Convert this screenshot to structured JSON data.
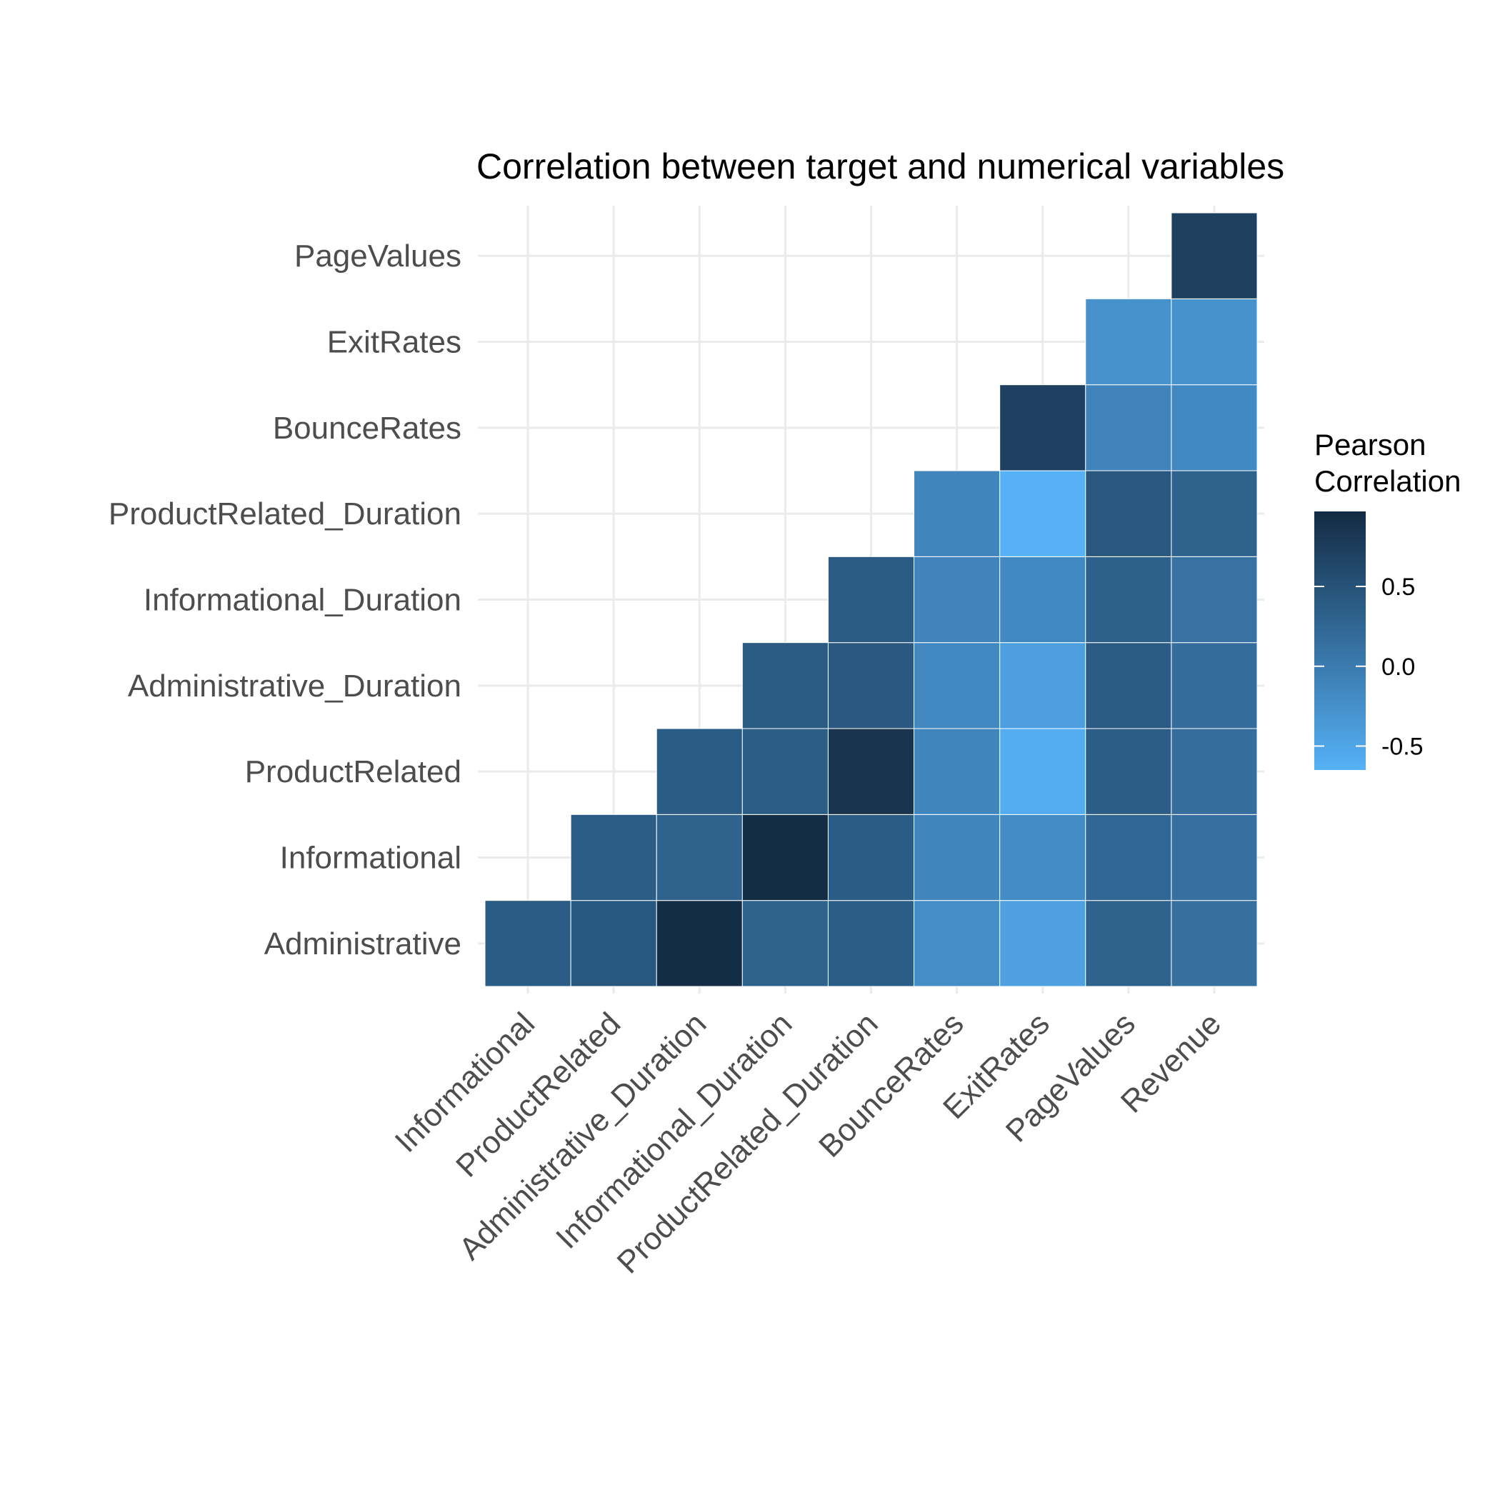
{
  "chart_data": {
    "type": "heatmap",
    "title": "Correlation between target and numerical variables",
    "xlabel": "",
    "ylabel": "",
    "x_categories": [
      "Informational",
      "ProductRelated",
      "Administrative_Duration",
      "Informational_Duration",
      "ProductRelated_Duration",
      "BounceRates",
      "ExitRates",
      "PageValues",
      "Revenue"
    ],
    "y_categories": [
      "Administrative",
      "Informational",
      "ProductRelated",
      "Administrative_Duration",
      "Informational_Duration",
      "ProductRelated_Duration",
      "BounceRates",
      "ExitRates",
      "PageValues"
    ],
    "cells": [
      {
        "x": "Informational",
        "y": "Administrative",
        "value": 0.38
      },
      {
        "x": "ProductRelated",
        "y": "Administrative",
        "value": 0.43
      },
      {
        "x": "Administrative_Duration",
        "y": "Administrative",
        "value": 0.94
      },
      {
        "x": "Informational_Duration",
        "y": "Administrative",
        "value": 0.3
      },
      {
        "x": "ProductRelated_Duration",
        "y": "Administrative",
        "value": 0.37
      },
      {
        "x": "BounceRates",
        "y": "Administrative",
        "value": -0.22
      },
      {
        "x": "ExitRates",
        "y": "Administrative",
        "value": -0.45
      },
      {
        "x": "PageValues",
        "y": "Administrative",
        "value": 0.3
      },
      {
        "x": "Revenue",
        "y": "Administrative",
        "value": 0.14
      },
      {
        "x": "ProductRelated",
        "y": "Informational",
        "value": 0.37
      },
      {
        "x": "Administrative_Duration",
        "y": "Informational",
        "value": 0.3
      },
      {
        "x": "Informational_Duration",
        "y": "Informational",
        "value": 0.95
      },
      {
        "x": "ProductRelated_Duration",
        "y": "Informational",
        "value": 0.38
      },
      {
        "x": "BounceRates",
        "y": "Informational",
        "value": -0.12
      },
      {
        "x": "ExitRates",
        "y": "Informational",
        "value": -0.2
      },
      {
        "x": "PageValues",
        "y": "Informational",
        "value": 0.24
      },
      {
        "x": "Revenue",
        "y": "Informational",
        "value": 0.13
      },
      {
        "x": "Administrative_Duration",
        "y": "ProductRelated",
        "value": 0.38
      },
      {
        "x": "Informational_Duration",
        "y": "ProductRelated",
        "value": 0.36
      },
      {
        "x": "ProductRelated_Duration",
        "y": "ProductRelated",
        "value": 0.86
      },
      {
        "x": "BounceRates",
        "y": "ProductRelated",
        "value": -0.12
      },
      {
        "x": "ExitRates",
        "y": "ProductRelated",
        "value": -0.6
      },
      {
        "x": "PageValues",
        "y": "ProductRelated",
        "value": 0.36
      },
      {
        "x": "Revenue",
        "y": "ProductRelated",
        "value": 0.16
      },
      {
        "x": "Informational_Duration",
        "y": "Administrative_Duration",
        "value": 0.39
      },
      {
        "x": "ProductRelated_Duration",
        "y": "Administrative_Duration",
        "value": 0.42
      },
      {
        "x": "BounceRates",
        "y": "Administrative_Duration",
        "value": -0.16
      },
      {
        "x": "ExitRates",
        "y": "Administrative_Duration",
        "value": -0.43
      },
      {
        "x": "PageValues",
        "y": "Administrative_Duration",
        "value": 0.4
      },
      {
        "x": "Revenue",
        "y": "Administrative_Duration",
        "value": 0.17
      },
      {
        "x": "ProductRelated_Duration",
        "y": "Informational_Duration",
        "value": 0.4
      },
      {
        "x": "BounceRates",
        "y": "Informational_Duration",
        "value": -0.11
      },
      {
        "x": "ExitRates",
        "y": "Informational_Duration",
        "value": -0.17
      },
      {
        "x": "PageValues",
        "y": "Informational_Duration",
        "value": 0.33
      },
      {
        "x": "Revenue",
        "y": "Informational_Duration",
        "value": 0.11
      },
      {
        "x": "BounceRates",
        "y": "ProductRelated_Duration",
        "value": -0.12
      },
      {
        "x": "ExitRates",
        "y": "ProductRelated_Duration",
        "value": -0.65
      },
      {
        "x": "PageValues",
        "y": "ProductRelated_Duration",
        "value": 0.44
      },
      {
        "x": "Revenue",
        "y": "ProductRelated_Duration",
        "value": 0.3
      },
      {
        "x": "ExitRates",
        "y": "BounceRates",
        "value": 0.7
      },
      {
        "x": "PageValues",
        "y": "BounceRates",
        "value": -0.11
      },
      {
        "x": "Revenue",
        "y": "BounceRates",
        "value": -0.16
      },
      {
        "x": "PageValues",
        "y": "ExitRates",
        "value": -0.27
      },
      {
        "x": "Revenue",
        "y": "ExitRates",
        "value": -0.27
      },
      {
        "x": "Revenue",
        "y": "PageValues",
        "value": 0.72
      }
    ],
    "color_scale": {
      "low": "#56B1F7",
      "high": "#132B43",
      "min": -0.65,
      "max": 0.97
    },
    "legend": {
      "title_lines": [
        "Pearson",
        "Correlation"
      ],
      "ticks": [
        0.5,
        0.0,
        -0.5
      ],
      "tick_labels": [
        "0.5",
        "0.0",
        "-0.5"
      ],
      "placement": "right"
    },
    "grid": true
  }
}
